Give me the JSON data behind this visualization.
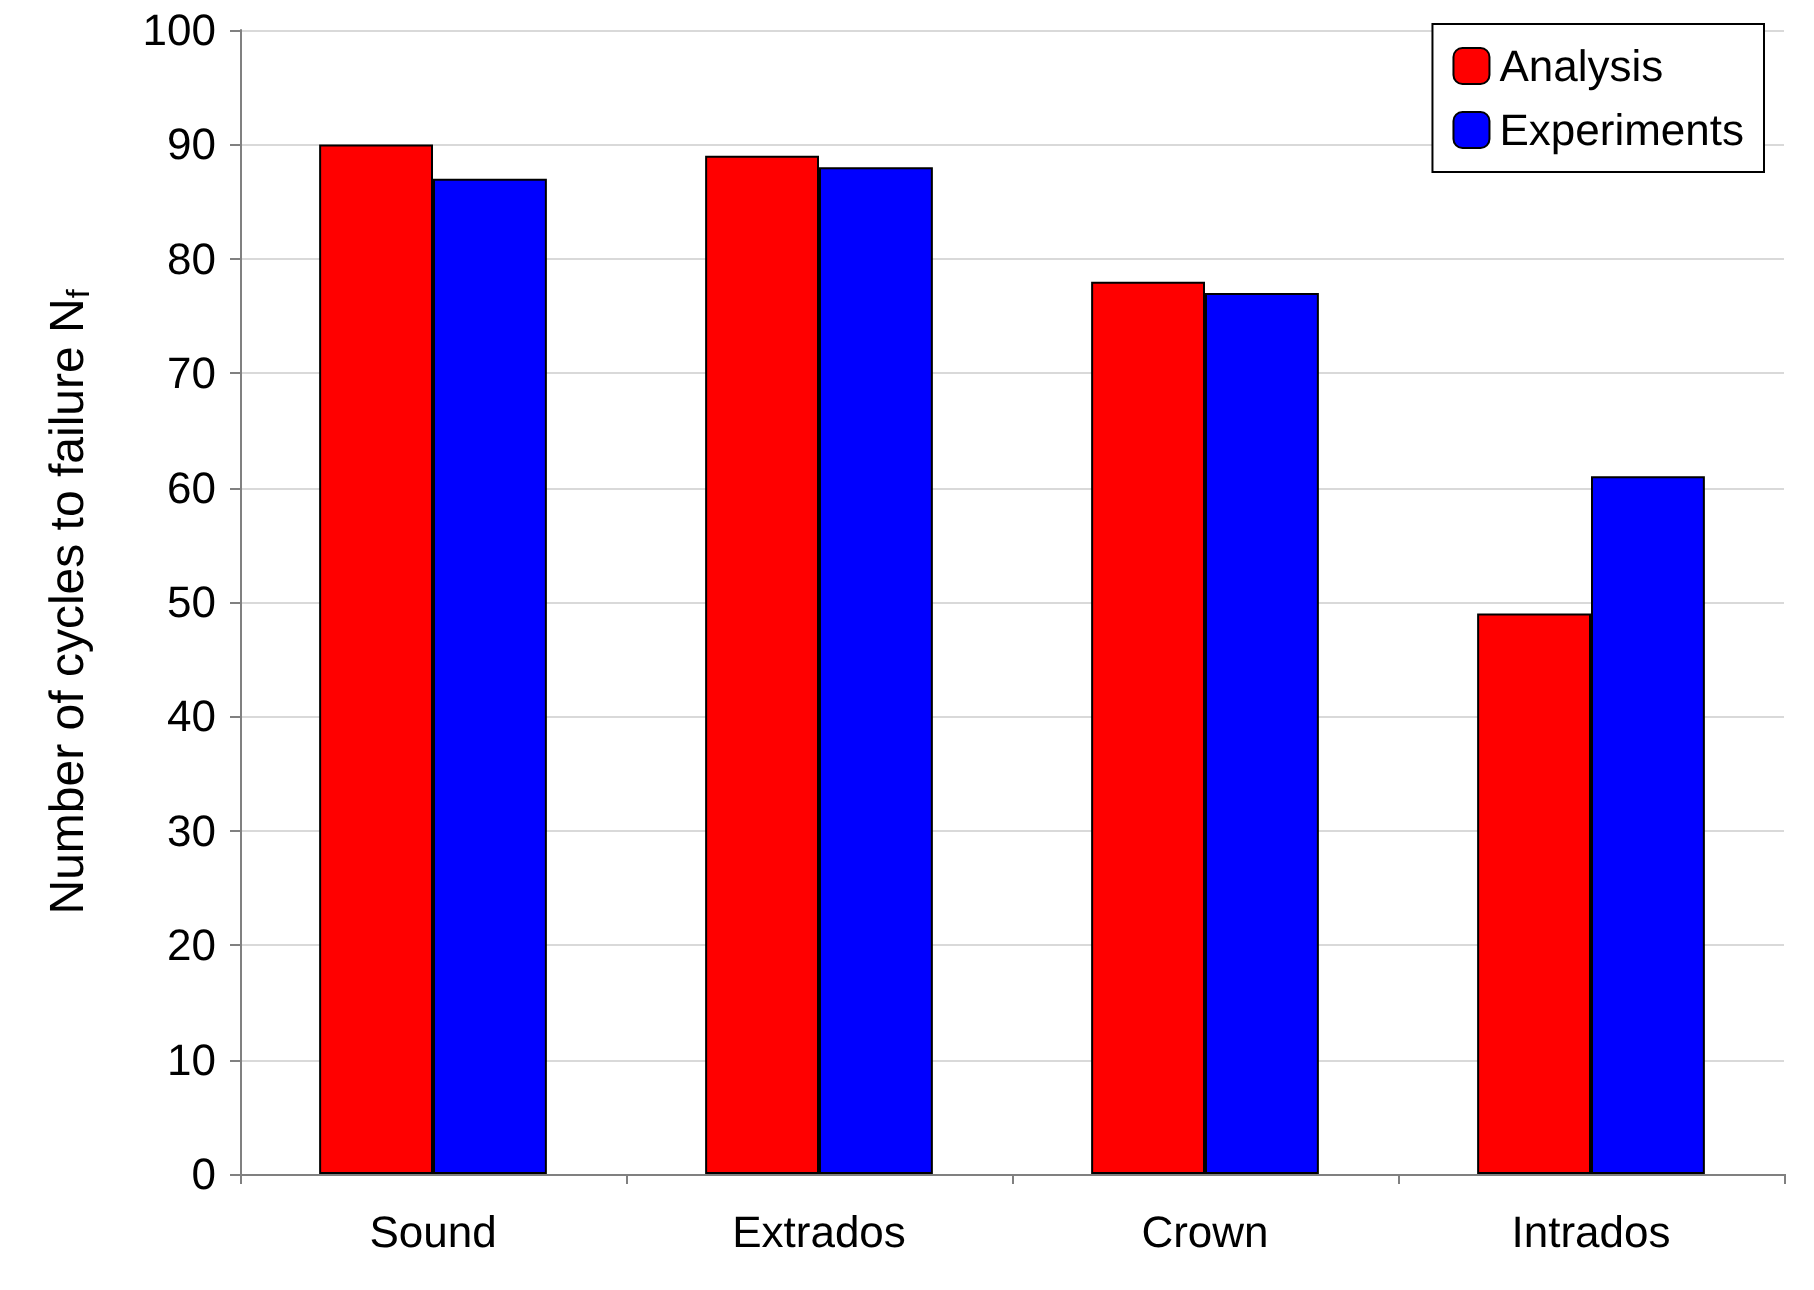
{
  "chart_data": {
    "type": "bar",
    "ylabel": "Number of cycles to failure N$_{f}$",
    "categories": [
      "Sound",
      "Extrados",
      "Crown",
      "Intrados"
    ],
    "series": [
      {
        "name": "Analysis",
        "color": "#ff0000",
        "values": [
          90,
          89,
          78,
          49
        ]
      },
      {
        "name": "Experiments",
        "color": "#0000ff",
        "values": [
          87,
          88,
          77,
          61
        ]
      }
    ],
    "ylim": [
      0,
      100
    ],
    "yticks": [
      0,
      10,
      20,
      30,
      40,
      50,
      60,
      70,
      80,
      90,
      100
    ],
    "grid": "y",
    "legend": "top right"
  }
}
